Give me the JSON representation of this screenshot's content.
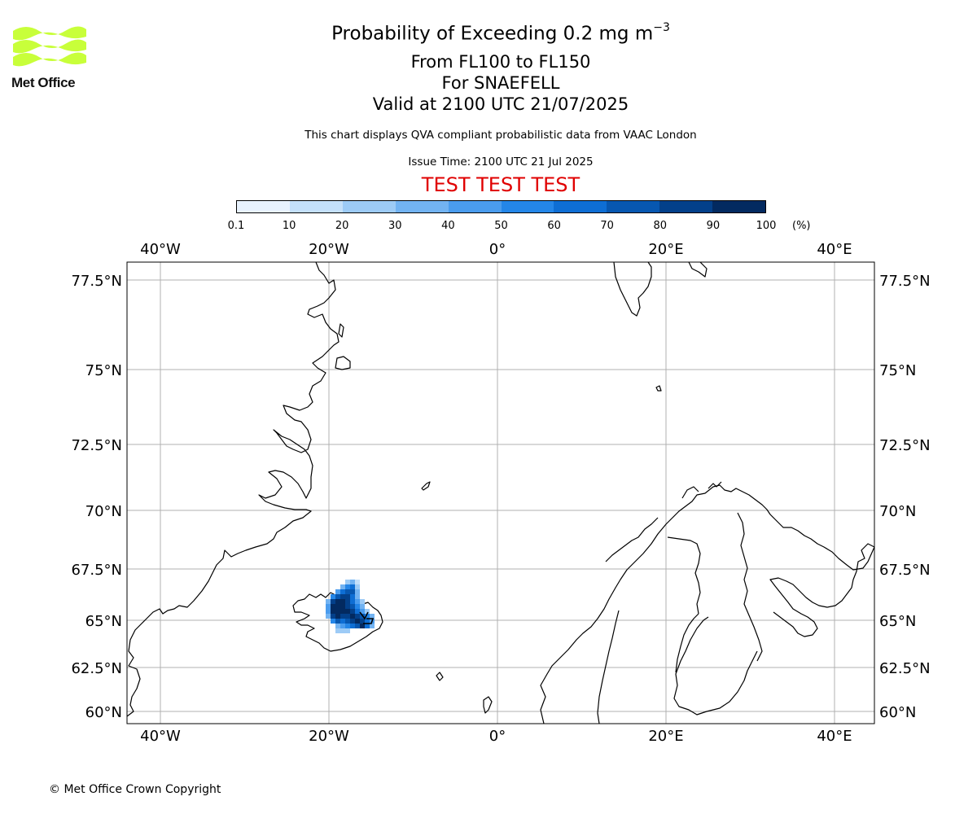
{
  "logo": {
    "text": "Met Office",
    "color": "#c8ff3a"
  },
  "header": {
    "title_main": "Probability of Exceeding 0.2 mg m",
    "title_superscript": "−3",
    "level_range": "From FL100 to FL150",
    "volcano": "For SNAEFELL",
    "valid_time": "Valid at 2100 UTC 21/07/2025",
    "note": "This chart displays QVA compliant probabilistic data from VAAC London",
    "issue_time": "Issue Time: 2100 UTC 21 Jul 2025",
    "test_banner": "TEST TEST TEST",
    "test_color": "#e00000"
  },
  "colorbar": {
    "labels": [
      "0.1",
      "10",
      "20",
      "30",
      "40",
      "50",
      "60",
      "70",
      "80",
      "90",
      "100"
    ],
    "colors": [
      "#e8f2fd",
      "#c4e0fa",
      "#9dcbf6",
      "#72b3f2",
      "#4a9cee",
      "#2486e8",
      "#0e6ed4",
      "#0757b0",
      "#03408a",
      "#032a60"
    ],
    "unit": "(%)"
  },
  "map": {
    "lon_ticks": [
      "40°W",
      "20°W",
      "0°",
      "20°E",
      "40°E"
    ],
    "lat_ticks": [
      "77.5°N",
      "75°N",
      "72.5°N",
      "70°N",
      "67.5°N",
      "65°N",
      "62.5°N",
      "60°N"
    ],
    "gridline_color": "#b0b0b0"
  },
  "copyright": "© Met Office Crown Copyright"
}
